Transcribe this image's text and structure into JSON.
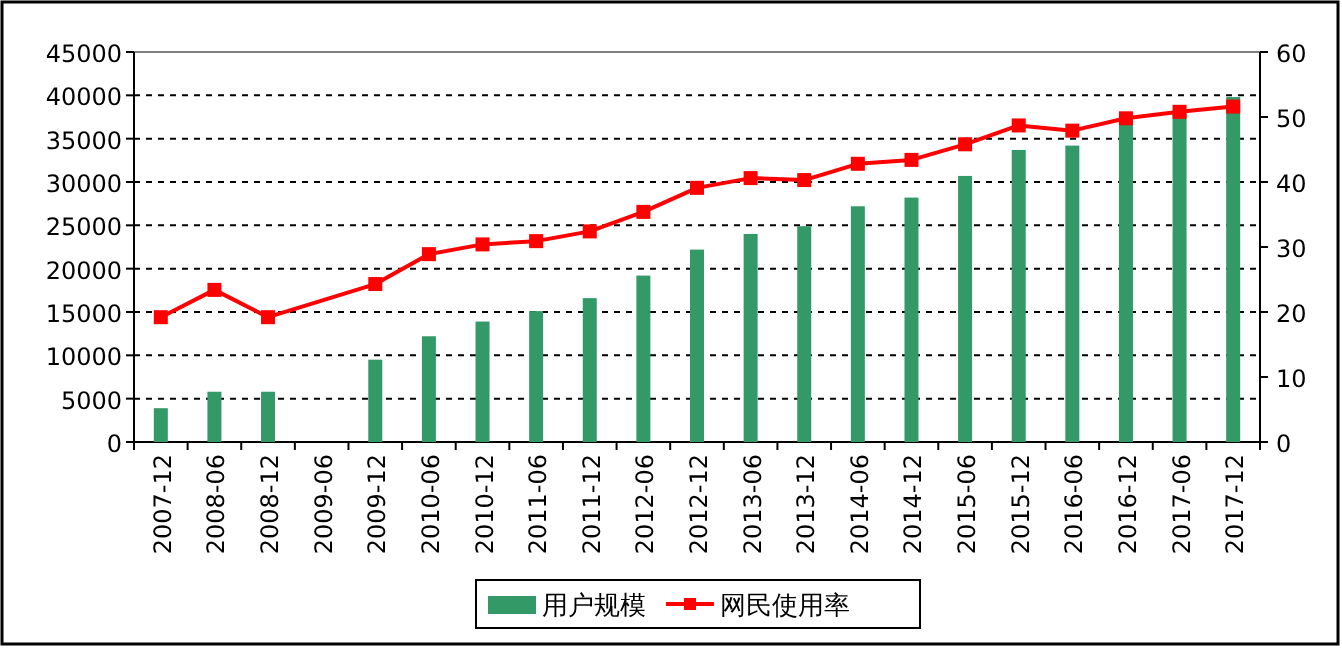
{
  "chart_data": {
    "type": "bar",
    "categories": [
      "2007-12",
      "2008-06",
      "2008-12",
      "2009-06",
      "2009-12",
      "2010-06",
      "2010-12",
      "2011-06",
      "2011-12",
      "2012-06",
      "2012-12",
      "2013-06",
      "2013-12",
      "2014-06",
      "2014-12",
      "2015-06",
      "2015-12",
      "2016-06",
      "2016-12",
      "2017-06",
      "2017-12"
    ],
    "series": [
      {
        "name": "用户规模",
        "color": "#339966",
        "values": [
          3900,
          5800,
          5800,
          null,
          9500,
          12200,
          13900,
          15100,
          16600,
          19200,
          22200,
          24000,
          24900,
          27200,
          28200,
          30700,
          33700,
          34200,
          37200,
          37900,
          39800
        ]
      },
      {
        "name": "网民使用率",
        "type": "line",
        "axis": "y2",
        "color": "#ff0000",
        "values": [
          19.2,
          23.4,
          19.2,
          null,
          24.3,
          28.9,
          30.4,
          30.9,
          32.4,
          35.4,
          39.1,
          40.6,
          40.3,
          42.8,
          43.4,
          45.8,
          48.7,
          47.9,
          49.8,
          50.8,
          51.6
        ]
      }
    ],
    "ylim": [
      0,
      45000
    ],
    "yticks": [
      0,
      5000,
      10000,
      15000,
      20000,
      25000,
      30000,
      35000,
      40000,
      45000
    ],
    "y2lim": [
      0,
      60
    ],
    "y2ticks": [
      0,
      10,
      20,
      30,
      40,
      50,
      60
    ],
    "grid": "y",
    "legend": "bottom",
    "marker": "square"
  }
}
